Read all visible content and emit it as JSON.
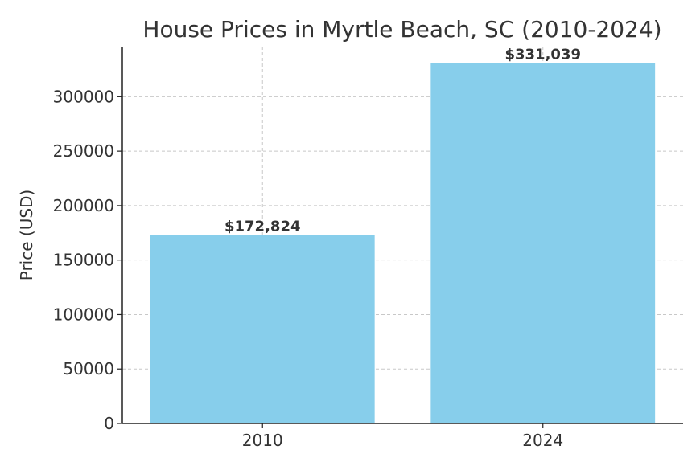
{
  "chart_data": {
    "type": "bar",
    "title": "House Prices in Myrtle Beach, SC (2010-2024)",
    "xlabel": "",
    "ylabel": "Price (USD)",
    "categories": [
      "2010",
      "2024"
    ],
    "values": [
      172824,
      331039
    ],
    "data_labels": [
      "$172,824",
      "$331,039"
    ],
    "ylim": [
      0,
      346000
    ],
    "yticks": [
      0,
      50000,
      100000,
      150000,
      200000,
      250000,
      300000
    ],
    "ytick_labels": [
      "0",
      "50000",
      "100000",
      "150000",
      "200000",
      "250000",
      "300000"
    ],
    "grid": true,
    "legend": "none",
    "colors": {
      "bar": "#87ceeb",
      "text": "#333333",
      "grid": "#c8c8c8",
      "axis": "#222222"
    }
  }
}
